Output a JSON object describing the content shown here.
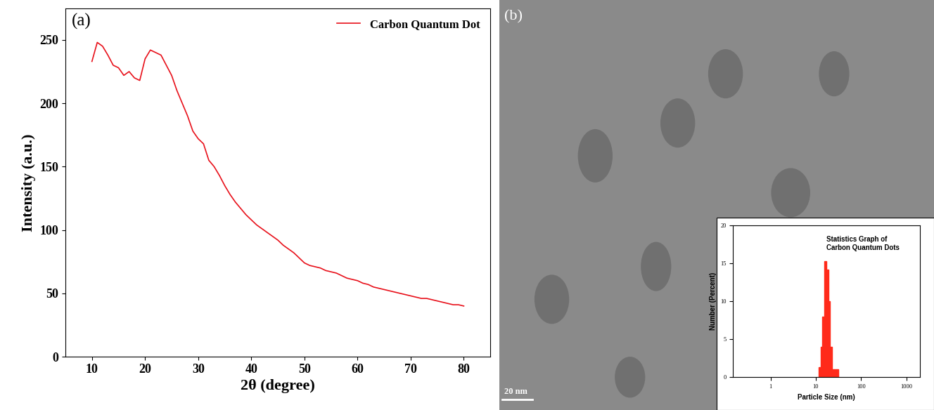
{
  "chart_data": [
    {
      "type": "line",
      "x_label": "2θ (degree)",
      "y_label": "Intensity (a.u.)",
      "annotations": [
        "(a)"
      ],
      "x": [
        10,
        11,
        12,
        13,
        14,
        15,
        16,
        17,
        18,
        19,
        20,
        21,
        22,
        23,
        24,
        25,
        26,
        27,
        28,
        29,
        30,
        31,
        32,
        33,
        34,
        35,
        36,
        37,
        38,
        39,
        40,
        41,
        42,
        43,
        44,
        45,
        46,
        47,
        48,
        49,
        50,
        51,
        52,
        53,
        54,
        55,
        56,
        57,
        58,
        59,
        60,
        61,
        62,
        63,
        64,
        65,
        66,
        67,
        68,
        69,
        70,
        71,
        72,
        73,
        74,
        75,
        76,
        77,
        78,
        79,
        80
      ],
      "series": [
        {
          "name": "Carbon Quantum Dot",
          "color": "#e8101a",
          "values": [
            233,
            248,
            245,
            238,
            230,
            228,
            222,
            225,
            220,
            218,
            235,
            242,
            240,
            238,
            230,
            222,
            210,
            200,
            190,
            178,
            172,
            168,
            155,
            150,
            143,
            135,
            128,
            122,
            117,
            112,
            108,
            104,
            101,
            98,
            95,
            92,
            88,
            85,
            82,
            78,
            74,
            72,
            71,
            70,
            68,
            67,
            66,
            64,
            62,
            61,
            60,
            58,
            57,
            55,
            54,
            53,
            52,
            51,
            50,
            49,
            48,
            47,
            46,
            46,
            45,
            44,
            43,
            42,
            41,
            41,
            40
          ]
        }
      ],
      "xlim": [
        5,
        85
      ],
      "xticks": [
        10,
        20,
        30,
        40,
        50,
        60,
        70,
        80
      ],
      "ylim": [
        0,
        275
      ],
      "yticks": [
        0,
        50,
        100,
        150,
        200,
        250
      ],
      "legend": "upper right"
    },
    {
      "type": "image",
      "annotations": [
        "(b)",
        "20 nm"
      ]
    },
    {
      "type": "histogram",
      "title": "Statistics Graph of\nCarbon Quantum Dots",
      "x_label": "Particle Size (nm)",
      "y_label": "Number (Percent)",
      "bins": [
        11.5,
        12.7,
        14,
        15.5,
        17,
        18.8,
        20.7,
        22.9,
        25.3,
        28,
        31
      ],
      "counts": [
        1.3,
        4,
        8,
        15.3,
        14.2,
        10,
        4,
        1,
        1,
        1
      ],
      "color": "#ff2a1a",
      "log": "x",
      "xlim": [
        0.15,
        2000
      ],
      "xticks": [
        1,
        10,
        100,
        1000
      ],
      "ylim": [
        0,
        20
      ],
      "yticks": [
        0,
        5,
        10,
        15,
        20
      ]
    }
  ]
}
